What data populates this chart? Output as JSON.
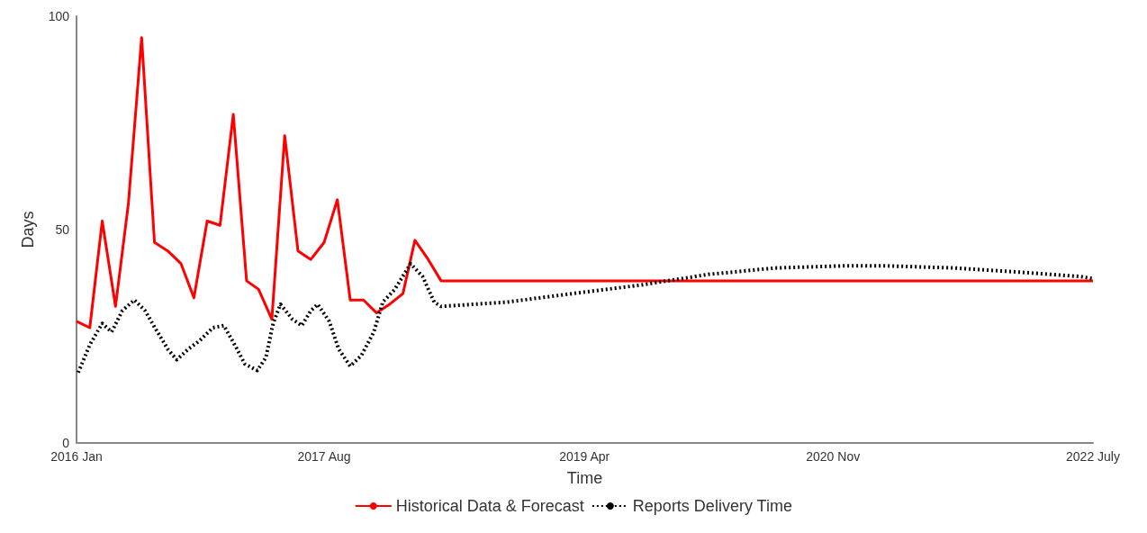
{
  "chart_data": {
    "type": "line",
    "xlabel": "Time",
    "ylabel": "Days",
    "xlim": [
      "2016-01",
      "2022-07"
    ],
    "xticks": [
      {
        "value": "2016-01",
        "label": "2016 Jan"
      },
      {
        "value": "2017-08",
        "label": "2017 Aug"
      },
      {
        "value": "2019-04",
        "label": "2019 Apr"
      },
      {
        "value": "2020-11",
        "label": "2020 Nov"
      },
      {
        "value": "2022-07",
        "label": "2022 July"
      }
    ],
    "ylim": [
      0,
      100
    ],
    "yticks": [
      0,
      50,
      100
    ],
    "grid": false,
    "legend": "bottom",
    "series": [
      {
        "name": "Historical Data & Forecast",
        "color": "#ff0000",
        "line_style": "solid",
        "x": [
          "2016-01",
          "2016-02",
          "2016-03",
          "2016-04",
          "2016-05",
          "2016-06",
          "2016-07",
          "2016-08",
          "2016-09",
          "2016-10",
          "2016-11",
          "2016-12",
          "2017-01",
          "2017-02",
          "2017-03",
          "2017-04",
          "2017-05",
          "2017-06",
          "2017-07",
          "2017-08",
          "2017-09",
          "2017-10",
          "2017-11",
          "2017-12",
          "2018-01",
          "2018-02",
          "2018-03",
          "2018-04",
          "2018-05",
          "2022-07"
        ],
        "values": [
          28.5,
          27,
          52,
          32,
          56,
          95,
          47,
          45,
          42,
          34,
          52,
          51,
          77,
          38,
          36,
          29,
          72,
          45,
          43,
          47,
          57,
          33.5,
          33.5,
          30.5,
          32.5,
          35,
          47.5,
          43,
          38,
          38
        ]
      },
      {
        "name": "Reports Delivery Time",
        "color": "#000000",
        "line_style": "dotted",
        "x": [
          "2016-01-05",
          "2016-02-01",
          "2016-03-01",
          "2016-03-23",
          "2016-04-17",
          "2016-05-15",
          "2016-06-09",
          "2016-07-02",
          "2016-08-01",
          "2016-08-22",
          "2016-09-18",
          "2016-10-15",
          "2016-11-14",
          "2016-12-10",
          "2017-01-07",
          "2017-01-28",
          "2017-02-26",
          "2017-03-18",
          "2017-04-04",
          "2017-04-21",
          "2017-05-19",
          "2017-06-10",
          "2017-07-01",
          "2017-07-17",
          "2017-08-13",
          "2017-09-04",
          "2017-10-01",
          "2017-10-27",
          "2017-11-25",
          "2017-12-16",
          "2018-01-13",
          "2018-02-19",
          "2018-03-19",
          "2018-04-15",
          "2018-05-01",
          "2018-10-01",
          "2019-03-04",
          "2019-08-10",
          "2020-01-15",
          "2020-06-19",
          "2020-11-24",
          "2021-03-07",
          "2021-08-12",
          "2022-01-15",
          "2022-06-01",
          "2022-07-01"
        ],
        "values": [
          16.5,
          23,
          28,
          26,
          31,
          33.5,
          31,
          27,
          22,
          19.5,
          22,
          24,
          27,
          27.5,
          22.5,
          18.5,
          17,
          20,
          28,
          32.5,
          29,
          27.5,
          31,
          32.5,
          28.5,
          22,
          18,
          20.5,
          26,
          33,
          36,
          42,
          39,
          33,
          32,
          33,
          35,
          37,
          39.5,
          41,
          41.5,
          41.5,
          41,
          40,
          39,
          38.5
        ]
      }
    ]
  }
}
